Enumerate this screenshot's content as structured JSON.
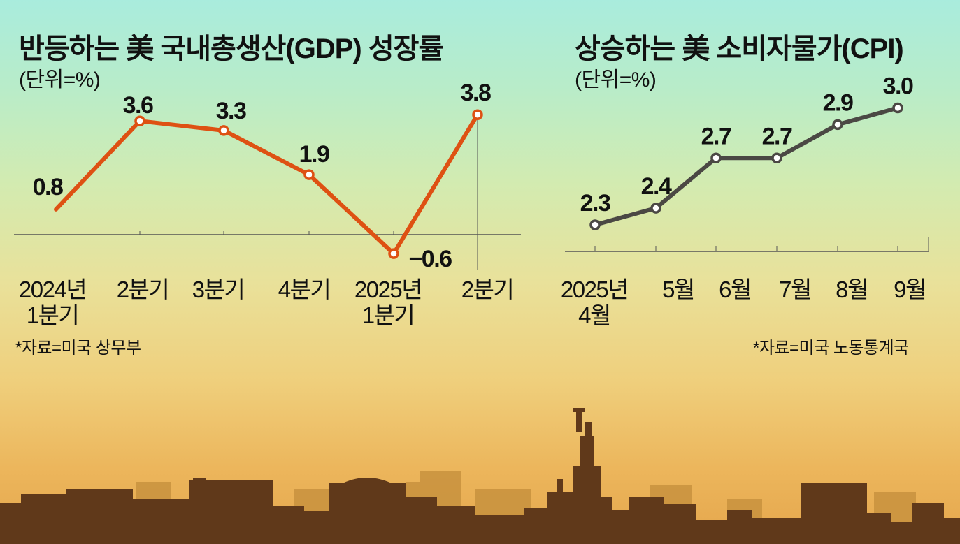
{
  "colors": {
    "gdp_line": "#de5113",
    "cpi_line": "#4b4844",
    "axis": "#555555",
    "skyline_front": "#60391a",
    "skyline_back": "#c8923e"
  },
  "gdp": {
    "title": "반등하는 美 국내총생산(GDP) 성장률",
    "unit": "(단위=%)",
    "source": "*자료=미국 상무부"
  },
  "cpi": {
    "title": "상승하는 美 소비자물가(CPI)",
    "unit": "(단위=%)",
    "source": "*자료=미국 노동통계국"
  },
  "chart_data": [
    {
      "type": "line",
      "title": "반등하는 美 국내총생산(GDP) 성장률",
      "unit": "%",
      "categories": [
        "2024년 1분기",
        "2분기",
        "3분기",
        "4분기",
        "2025년 1분기",
        "2분기"
      ],
      "values": [
        0.8,
        3.6,
        3.3,
        1.9,
        -0.6,
        3.8
      ],
      "data_labels": [
        "0.8",
        "3.6",
        "3.3",
        "1.9",
        "−0.6",
        "3.8"
      ],
      "baseline": 0,
      "grid": false
    },
    {
      "type": "line",
      "title": "상승하는 美 소비자물가(CPI)",
      "unit": "%",
      "categories": [
        "2025년 4월",
        "5월",
        "6월",
        "7월",
        "8월",
        "9월"
      ],
      "values": [
        2.3,
        2.4,
        2.7,
        2.7,
        2.9,
        3.0
      ],
      "data_labels": [
        "2.3",
        "2.4",
        "2.7",
        "2.7",
        "2.9",
        "3.0"
      ],
      "grid": false
    }
  ]
}
